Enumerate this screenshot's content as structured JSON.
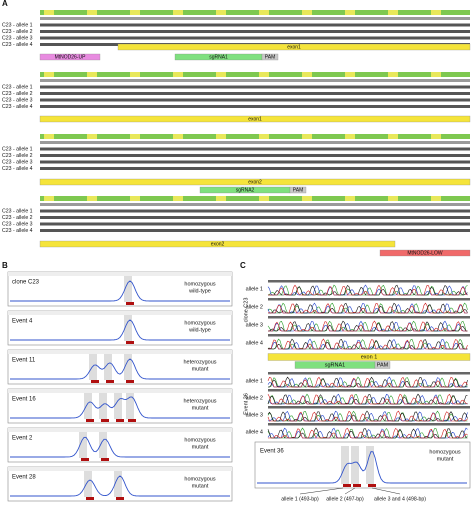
{
  "panel_a": {
    "label": "A",
    "blocks": [
      {
        "rows": [
          "C23 - allele 1",
          "C23 - allele 2",
          "C23 - allele 3",
          "C23 - allele 4"
        ],
        "features": [
          {
            "label": "exon1",
            "color": "#f5e43a"
          },
          {
            "label": "MtNOD26-UP",
            "color": "#e88be0"
          },
          {
            "label": "sgRNA1",
            "color": "#7fe07f"
          },
          {
            "label": "PAM",
            "color": "#c8c8c8"
          }
        ]
      },
      {
        "rows": [
          "C23 - allele 1",
          "C23 - allele 2",
          "C23 - allele 3",
          "C23 - allele 4"
        ],
        "features": [
          {
            "label": "exon1",
            "color": "#f5e43a"
          }
        ]
      },
      {
        "rows": [
          "C23 - allele 1",
          "C23 - allele 2",
          "C23 - allele 3",
          "C23 - allele 4"
        ],
        "features": [
          {
            "label": "exon2",
            "color": "#f5e43a"
          },
          {
            "label": "sgRNA2",
            "color": "#7fe07f"
          },
          {
            "label": "PAM",
            "color": "#c8c8c8"
          }
        ]
      },
      {
        "rows": [
          "C23 - allele 1",
          "C23 - allele 2",
          "C23 - allele 3",
          "C23 - allele 4"
        ],
        "features": [
          {
            "label": "exon2",
            "color": "#f5e43a"
          },
          {
            "label": "MtNOD26-LOW",
            "color": "#f06a6a"
          }
        ]
      }
    ]
  },
  "panel_b": {
    "label": "B",
    "graphs": [
      {
        "label": "clone C23",
        "genotype": [
          "homozygous",
          "wild-type"
        ]
      },
      {
        "label": "Event 4",
        "genotype": [
          "homozygous",
          "wild-type"
        ]
      },
      {
        "label": "Event 11",
        "genotype": [
          "heterozygous",
          "mutant"
        ]
      },
      {
        "label": "Event 16",
        "genotype": [
          "heterozygous",
          "mutant"
        ]
      },
      {
        "label": "Event 2",
        "genotype": [
          "homozygous",
          "mutant"
        ]
      },
      {
        "label": "Event 28",
        "genotype": [
          "homozygous",
          "mutant"
        ]
      }
    ]
  },
  "panel_c": {
    "label": "C",
    "group1": {
      "label": "clone C23",
      "alleles": [
        "allele 1",
        "allele 2",
        "allele 3",
        "allele 4"
      ]
    },
    "features": [
      {
        "label": "exon 1",
        "color": "#f5e43a"
      },
      {
        "label": "sgRNA1",
        "color": "#7fe07f"
      },
      {
        "label": "PAM",
        "color": "#c8c8c8"
      }
    ],
    "group2": {
      "label": "Event 36",
      "alleles": [
        "allele 1",
        "allele 2",
        "allele 3",
        "allele 4"
      ]
    },
    "inset": {
      "label": "Event 36",
      "genotype": [
        "homozygous",
        "mutant"
      ]
    },
    "allele_sizes": [
      "allele 1 (493-bp)",
      "allele 2 (497-bp)",
      "allele 3 and 4 (498-bp)"
    ]
  }
}
